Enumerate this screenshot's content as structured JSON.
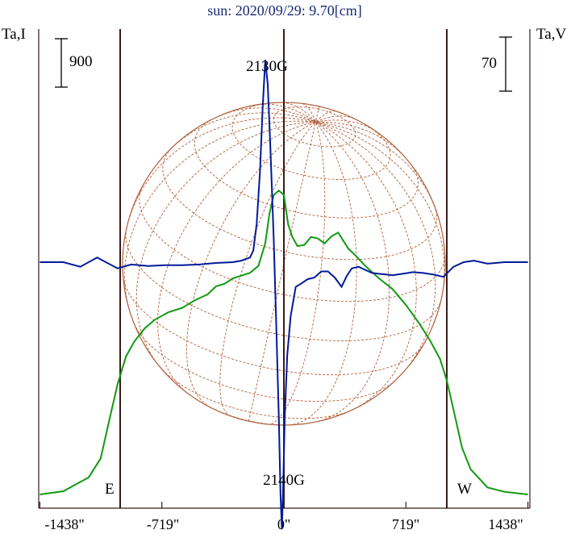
{
  "title": "sun: 2020/09/29: 9.70[cm]",
  "left_axis_label": "Ta,I",
  "right_axis_label": "Ta,V",
  "left_scale_bar": "900",
  "right_scale_bar": "70",
  "limb_labels": {
    "east": "E",
    "west": "W"
  },
  "colors": {
    "intensity": "#119911",
    "polarization": "#001a99",
    "disk": "#b0603a",
    "frame": "#3a1a1a",
    "title": "#1a2a7a"
  },
  "chart_data": {
    "type": "line",
    "title": "sun: 2020/09/29: 9.70[cm]",
    "xlabel": "",
    "x_ticks": [
      "-1438\"",
      "-719\"",
      "0\"",
      "719\"",
      "1438\""
    ],
    "x_tick_values": [
      -1438,
      -719,
      0,
      719,
      1438
    ],
    "xlim": [
      -1438,
      1438
    ],
    "limbs": [
      -960,
      960
    ],
    "scale_bars": {
      "I": 900,
      "V": 70
    },
    "annotations": [
      {
        "text": "2130G",
        "x": -10,
        "series": "I"
      },
      {
        "text": "2140G",
        "x": -10,
        "series": "V"
      }
    ],
    "series": [
      {
        "id": "I",
        "axis": "Ta,I",
        "points": [
          [
            -1438,
            30
          ],
          [
            -1300,
            90
          ],
          [
            -1150,
            350
          ],
          [
            -1080,
            700
          ],
          [
            -1030,
            1400
          ],
          [
            -980,
            2080
          ],
          [
            -930,
            2600
          ],
          [
            -880,
            2880
          ],
          [
            -820,
            3120
          ],
          [
            -760,
            3280
          ],
          [
            -680,
            3420
          ],
          [
            -600,
            3500
          ],
          [
            -520,
            3650
          ],
          [
            -450,
            3750
          ],
          [
            -400,
            3900
          ],
          [
            -350,
            3950
          ],
          [
            -300,
            4050
          ],
          [
            -250,
            4100
          ],
          [
            -200,
            4150
          ],
          [
            -150,
            4280
          ],
          [
            -110,
            4700
          ],
          [
            -85,
            5250
          ],
          [
            -60,
            5600
          ],
          [
            -30,
            5680
          ],
          [
            0,
            5600
          ],
          [
            25,
            5050
          ],
          [
            50,
            4820
          ],
          [
            80,
            4650
          ],
          [
            120,
            4670
          ],
          [
            160,
            4820
          ],
          [
            200,
            4790
          ],
          [
            240,
            4700
          ],
          [
            280,
            4830
          ],
          [
            320,
            4900
          ],
          [
            350,
            4750
          ],
          [
            380,
            4600
          ],
          [
            420,
            4480
          ],
          [
            480,
            4280
          ],
          [
            560,
            4050
          ],
          [
            640,
            3850
          ],
          [
            720,
            3550
          ],
          [
            800,
            3200
          ],
          [
            860,
            2900
          ],
          [
            920,
            2550
          ],
          [
            960,
            2150
          ],
          [
            1000,
            1600
          ],
          [
            1050,
            900
          ],
          [
            1100,
            500
          ],
          [
            1200,
            160
          ],
          [
            1300,
            80
          ],
          [
            1438,
            30
          ]
        ]
      },
      {
        "id": "V",
        "axis": "Ta,V",
        "points": [
          [
            -1438,
            0
          ],
          [
            -1300,
            0
          ],
          [
            -1200,
            -6
          ],
          [
            -1100,
            6
          ],
          [
            -980,
            -8
          ],
          [
            -900,
            -3
          ],
          [
            -800,
            -5
          ],
          [
            -700,
            -4
          ],
          [
            -600,
            -4
          ],
          [
            -500,
            -3
          ],
          [
            -400,
            -1
          ],
          [
            -300,
            0
          ],
          [
            -250,
            2
          ],
          [
            -200,
            6
          ],
          [
            -180,
            15
          ],
          [
            -160,
            50
          ],
          [
            -140,
            120
          ],
          [
            -125,
            200
          ],
          [
            -110,
            262
          ],
          [
            -95,
            230
          ],
          [
            -80,
            150
          ],
          [
            -60,
            30
          ],
          [
            -45,
            -80
          ],
          [
            -30,
            -200
          ],
          [
            -20,
            -300
          ],
          [
            -12,
            -346
          ],
          [
            -5,
            -300
          ],
          [
            5,
            -200
          ],
          [
            20,
            -120
          ],
          [
            40,
            -70
          ],
          [
            70,
            -32
          ],
          [
            100,
            -28
          ],
          [
            140,
            -22
          ],
          [
            180,
            -20
          ],
          [
            220,
            -12
          ],
          [
            260,
            -12
          ],
          [
            300,
            -20
          ],
          [
            340,
            -32
          ],
          [
            370,
            -18
          ],
          [
            400,
            -8
          ],
          [
            440,
            -6
          ],
          [
            480,
            -10
          ],
          [
            520,
            -14
          ],
          [
            560,
            -15
          ],
          [
            600,
            -16
          ],
          [
            640,
            -17
          ],
          [
            700,
            -15
          ],
          [
            760,
            -13
          ],
          [
            820,
            -14
          ],
          [
            880,
            -16
          ],
          [
            940,
            -19
          ],
          [
            1000,
            -6
          ],
          [
            1060,
            0
          ],
          [
            1120,
            2
          ],
          [
            1200,
            -2
          ],
          [
            1300,
            0
          ],
          [
            1438,
            0
          ]
        ]
      }
    ]
  }
}
